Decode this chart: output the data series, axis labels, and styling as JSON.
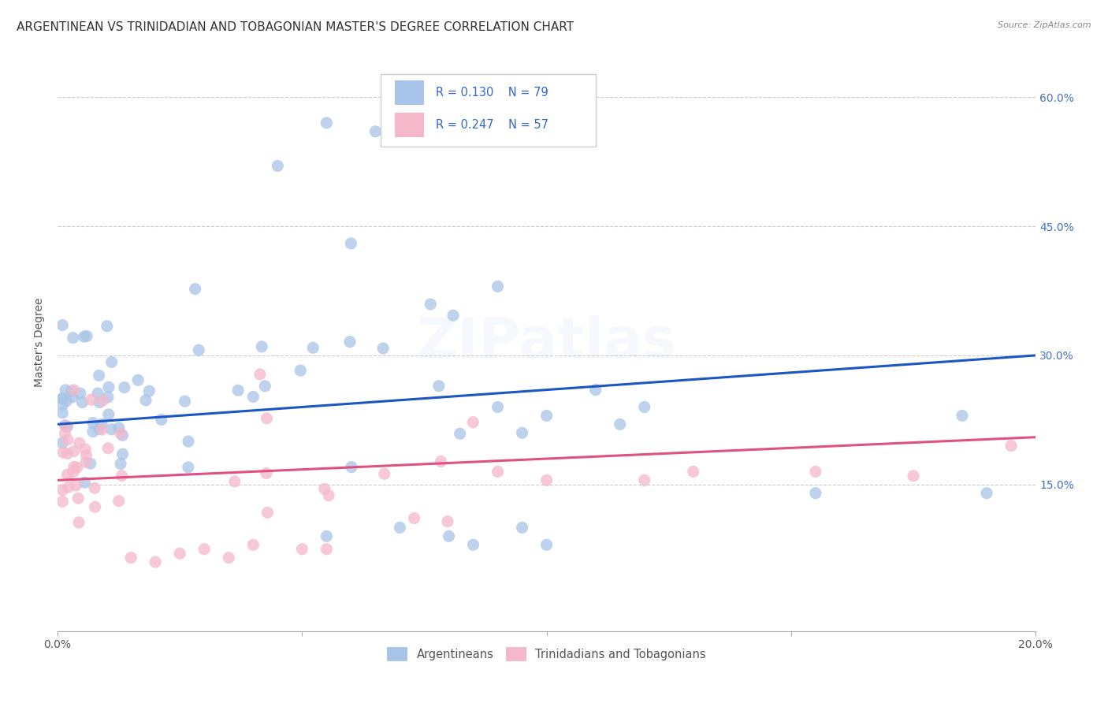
{
  "title": "ARGENTINEAN VS TRINIDADIAN AND TOBAGONIAN MASTER'S DEGREE CORRELATION CHART",
  "source": "Source: ZipAtlas.com",
  "ylabel": "Master's Degree",
  "ytick_labels": [
    "15.0%",
    "30.0%",
    "45.0%",
    "60.0%"
  ],
  "ytick_values": [
    0.15,
    0.3,
    0.45,
    0.6
  ],
  "xlim": [
    0.0,
    0.2
  ],
  "ylim": [
    -0.02,
    0.65
  ],
  "legend_label_1": "Argentineans",
  "legend_label_2": "Trinidadians and Tobagonians",
  "legend_R1": "R = 0.130",
  "legend_N1": "N = 79",
  "legend_R2": "R = 0.247",
  "legend_N2": "N = 57",
  "color_blue": "#a8c4e8",
  "color_pink": "#f5b8cb",
  "trendline_blue": "#1a56c4",
  "trendline_pink": "#e05080",
  "watermark": "ZIPatlas",
  "title_fontsize": 11,
  "axis_label_fontsize": 10,
  "tick_fontsize": 10,
  "watermark_fontsize": 52,
  "watermark_alpha": 0.13,
  "blue_trendline_y0": 0.22,
  "blue_trendline_y1": 0.3,
  "pink_trendline_y0": 0.155,
  "pink_trendline_y1": 0.205
}
